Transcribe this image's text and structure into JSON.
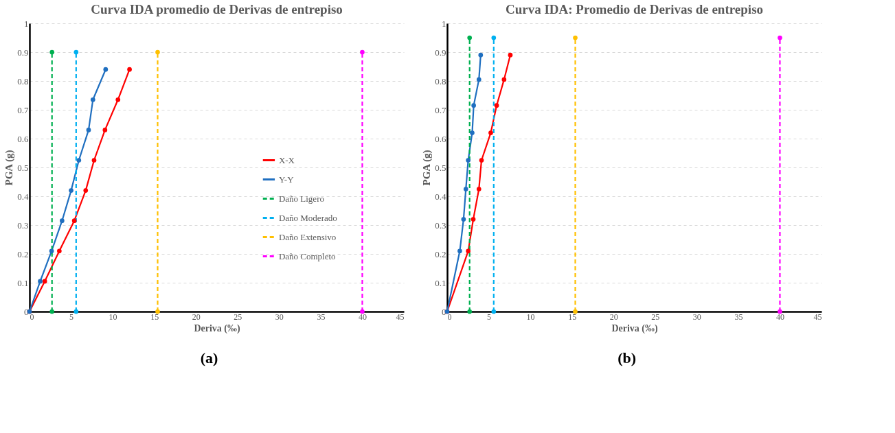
{
  "chart_data": [
    {
      "type": "line",
      "title": "Curva IDA promedio de Derivas de entrepiso",
      "xlabel": "Deriva  (‰)",
      "ylabel": "PGA (g)",
      "annotations": [
        "(a)"
      ],
      "xlim": [
        0,
        45
      ],
      "xticks": [
        0,
        5,
        10,
        15,
        20,
        25,
        30,
        35,
        40,
        45
      ],
      "ylim": [
        0,
        1
      ],
      "yticks": [
        0,
        0.1,
        0.2,
        0.3,
        0.4,
        0.5,
        0.6,
        0.7,
        0.8,
        0.9,
        1
      ],
      "grid": "y",
      "legend": "right",
      "marker": "circle",
      "series": [
        {
          "name": "X-X",
          "color": "#ff0000",
          "line_style": "solid",
          "x": [
            0,
            1.83,
            3.58,
            5.38,
            6.75,
            7.76,
            9.07,
            10.63,
            12.02
          ],
          "values": [
            0,
            0.105,
            0.21,
            0.315,
            0.42,
            0.525,
            0.63,
            0.735,
            0.84
          ]
        },
        {
          "name": "Y-Y",
          "color": "#1f6fc0",
          "line_style": "solid",
          "x": [
            0,
            1.28,
            2.65,
            3.91,
            5.0,
            5.93,
            7.1,
            7.62,
            9.15
          ],
          "values": [
            0,
            0.105,
            0.21,
            0.315,
            0.42,
            0.525,
            0.63,
            0.735,
            0.84
          ]
        },
        {
          "name": "Daño Ligero",
          "color": "#00b050",
          "line_style": "dashed",
          "x": [
            2.7,
            2.7
          ],
          "values": [
            0,
            0.9
          ]
        },
        {
          "name": "Daño Moderado",
          "color": "#00b0f0",
          "line_style": "dashed",
          "x": [
            5.6,
            5.6
          ],
          "values": [
            0,
            0.9
          ]
        },
        {
          "name": "Daño Extensivo",
          "color": "#ffc000",
          "line_style": "dashed",
          "x": [
            15.4,
            15.4
          ],
          "values": [
            0,
            0.9
          ]
        },
        {
          "name": "Daño Completo",
          "color": "#ff00ff",
          "line_style": "dashed",
          "x": [
            40,
            40
          ],
          "values": [
            0,
            0.9
          ]
        }
      ]
    },
    {
      "type": "line",
      "title": "Curva IDA: Promedio de Derivas de entrepiso",
      "xlabel": "Deriva (‰)",
      "ylabel": "PGA (g)",
      "annotations": [
        "(b)"
      ],
      "xlim": [
        0,
        45
      ],
      "xticks": [
        0,
        5,
        10,
        15,
        20,
        25,
        30,
        35,
        40,
        45
      ],
      "ylim": [
        0,
        1
      ],
      "yticks": [
        0,
        0.1,
        0.2,
        0.3,
        0.4,
        0.5,
        0.6,
        0.7,
        0.8,
        0.9,
        1
      ],
      "grid": "y",
      "legend": "right",
      "marker": "circle",
      "series": [
        {
          "name": "X-X",
          "color": "#ff0000",
          "line_style": "solid",
          "x": [
            0,
            2.53,
            3.14,
            3.82,
            4.13,
            5.24,
            5.95,
            6.84,
            7.59
          ],
          "values": [
            0,
            0.21,
            0.32,
            0.425,
            0.525,
            0.62,
            0.715,
            0.805,
            0.89
          ]
        },
        {
          "name": "Y-Y",
          "color": "#1f6fc0",
          "line_style": "solid",
          "x": [
            0,
            1.52,
            1.97,
            2.25,
            2.53,
            3.01,
            3.19,
            3.82,
            4.03
          ],
          "values": [
            0,
            0.21,
            0.32,
            0.425,
            0.525,
            0.62,
            0.715,
            0.805,
            0.89
          ]
        },
        {
          "name": "Daño Ligero",
          "color": "#00b050",
          "line_style": "dashed",
          "x": [
            2.7,
            2.7
          ],
          "values": [
            0,
            0.95
          ]
        },
        {
          "name": "Daño Moderado",
          "color": "#00b0f0",
          "line_style": "dashed",
          "x": [
            5.6,
            5.6
          ],
          "values": [
            0,
            0.95
          ]
        },
        {
          "name": "Daño Extensivo",
          "color": "#ffc000",
          "line_style": "dashed",
          "x": [
            15.4,
            15.4
          ],
          "values": [
            0,
            0.95
          ]
        },
        {
          "name": "Daño Completo",
          "color": "#ff00ff",
          "line_style": "dashed",
          "x": [
            40,
            40
          ],
          "values": [
            0,
            0.95
          ]
        }
      ]
    }
  ]
}
